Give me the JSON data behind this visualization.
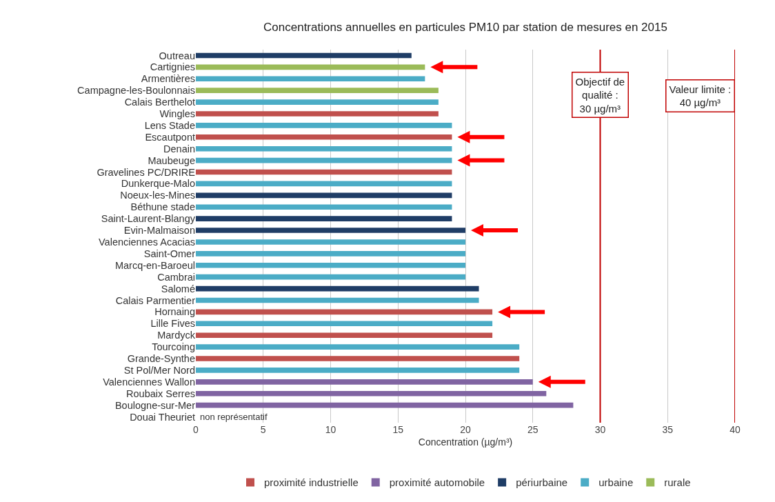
{
  "chart_data": {
    "type": "bar",
    "orientation": "horizontal",
    "title": "Concentrations annuelles en particules PM10 par station de mesures en 2015",
    "xlabel": "Concentration (µg/m³)",
    "categories": [
      "Outreau",
      "Cartignies",
      "Armentières",
      "Campagne-les-Boulonnais",
      "Calais Berthelot",
      "Wingles",
      "Lens Stade",
      "Escautpont",
      "Denain",
      "Maubeuge",
      "Gravelines PC/DRIRE",
      "Dunkerque-Malo",
      "Noeux-les-Mines",
      "Béthune stade",
      "Saint-Laurent-Blangy",
      "Evin-Malmaison",
      "Valenciennes Acacias",
      "Saint-Omer",
      "Marcq-en-Baroeul",
      "Cambrai",
      "Salomé",
      "Calais Parmentier",
      "Hornaing",
      "Lille Fives",
      "Mardyck",
      "Tourcoing",
      "Grande-Synthe",
      "St Pol/Mer Nord",
      "Valenciennes Wallon",
      "Roubaix Serres",
      "Boulogne-sur-Mer",
      "Douai Theuriet"
    ],
    "series": [
      {
        "name": "proximité industrielle",
        "color": "#c0504d",
        "values": [
          null,
          null,
          null,
          null,
          null,
          18,
          null,
          19,
          null,
          null,
          19,
          null,
          null,
          null,
          null,
          null,
          null,
          null,
          null,
          null,
          null,
          null,
          22,
          null,
          22,
          null,
          24,
          null,
          null,
          null,
          null,
          null
        ]
      },
      {
        "name": "proximité automobile",
        "color": "#8064a2",
        "values": [
          null,
          null,
          null,
          null,
          null,
          null,
          null,
          null,
          null,
          null,
          null,
          null,
          null,
          null,
          null,
          null,
          null,
          null,
          null,
          null,
          null,
          null,
          null,
          null,
          null,
          null,
          null,
          null,
          25,
          26,
          28,
          null
        ]
      },
      {
        "name": "périurbaine",
        "color": "#1f3d66",
        "values": [
          16,
          null,
          null,
          null,
          null,
          null,
          null,
          null,
          null,
          null,
          null,
          null,
          19,
          null,
          19,
          20,
          null,
          null,
          null,
          null,
          21,
          null,
          null,
          null,
          null,
          null,
          null,
          null,
          null,
          null,
          null,
          null
        ]
      },
      {
        "name": "urbaine",
        "color": "#4bacc6",
        "values": [
          null,
          null,
          17,
          null,
          18,
          null,
          19,
          null,
          19,
          19,
          null,
          19,
          null,
          19,
          null,
          null,
          20,
          20,
          20,
          20,
          null,
          21,
          null,
          22,
          null,
          24,
          null,
          24,
          null,
          null,
          null,
          null
        ]
      },
      {
        "name": "rurale",
        "color": "#9bbb59",
        "values": [
          null,
          17,
          null,
          18,
          null,
          null,
          null,
          null,
          null,
          null,
          null,
          null,
          null,
          null,
          null,
          null,
          null,
          null,
          null,
          null,
          null,
          null,
          null,
          null,
          null,
          null,
          null,
          null,
          null,
          null,
          null,
          null
        ]
      }
    ],
    "annotations": [
      "non représentatif"
    ],
    "ref_lines": [
      {
        "axis": "x",
        "value": 30,
        "label": "Objectif de\nqualité :\n30 µg/m³",
        "color": "#c00000"
      },
      {
        "axis": "x",
        "value": 40,
        "label": "Valeur limite :\n40 µg/m³",
        "color": "#c00000"
      }
    ],
    "xlim": [
      0,
      40
    ],
    "xticks": [
      0,
      5,
      10,
      15,
      20,
      25,
      30,
      35,
      40
    ],
    "grid": "x",
    "legend": "bottom"
  }
}
